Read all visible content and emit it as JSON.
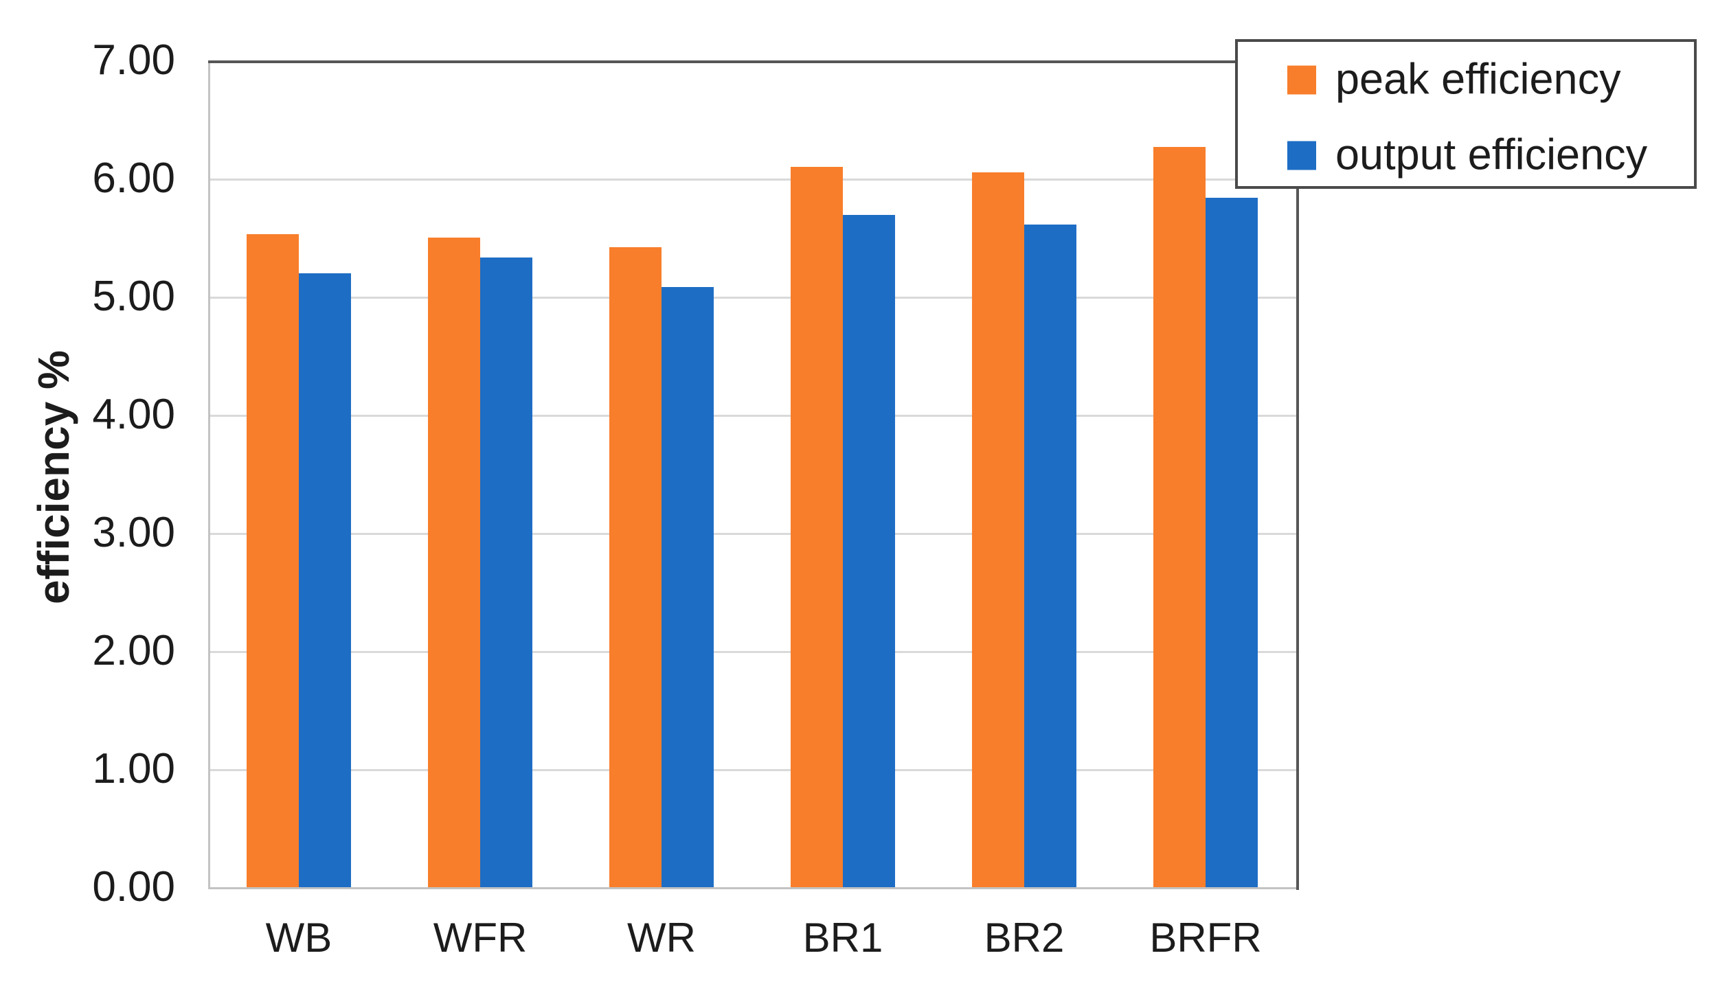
{
  "chart_data": {
    "type": "bar",
    "title": "",
    "ylabel": "efficiency %",
    "xlabel": "",
    "categories": [
      "WB",
      "WFR",
      "WR",
      "BR1",
      "BR2",
      "BRFR"
    ],
    "series": [
      {
        "name": "peak efficiency",
        "color": "#F87E2B",
        "values": [
          5.53,
          5.5,
          5.42,
          6.1,
          6.05,
          6.27
        ]
      },
      {
        "name": "output efficiency",
        "color": "#1E6DC4",
        "values": [
          5.2,
          5.33,
          5.08,
          5.69,
          5.61,
          5.84
        ]
      }
    ],
    "ylim": [
      0,
      7
    ],
    "ytick_step": 1,
    "ytick_labels": [
      "0.00",
      "1.00",
      "2.00",
      "3.00",
      "4.00",
      "5.00",
      "6.00",
      "7.00"
    ],
    "grid": "horizontal",
    "legend_position": "top-right",
    "legend_entries": [
      "peak efficiency",
      "output efficiency"
    ]
  },
  "style_colors": {
    "background": "#FFFFFF",
    "gridline": "#D9D9D9",
    "axis_light": "#C3C3C3",
    "border_dark": "#565656",
    "text": "#1C1C1C"
  }
}
